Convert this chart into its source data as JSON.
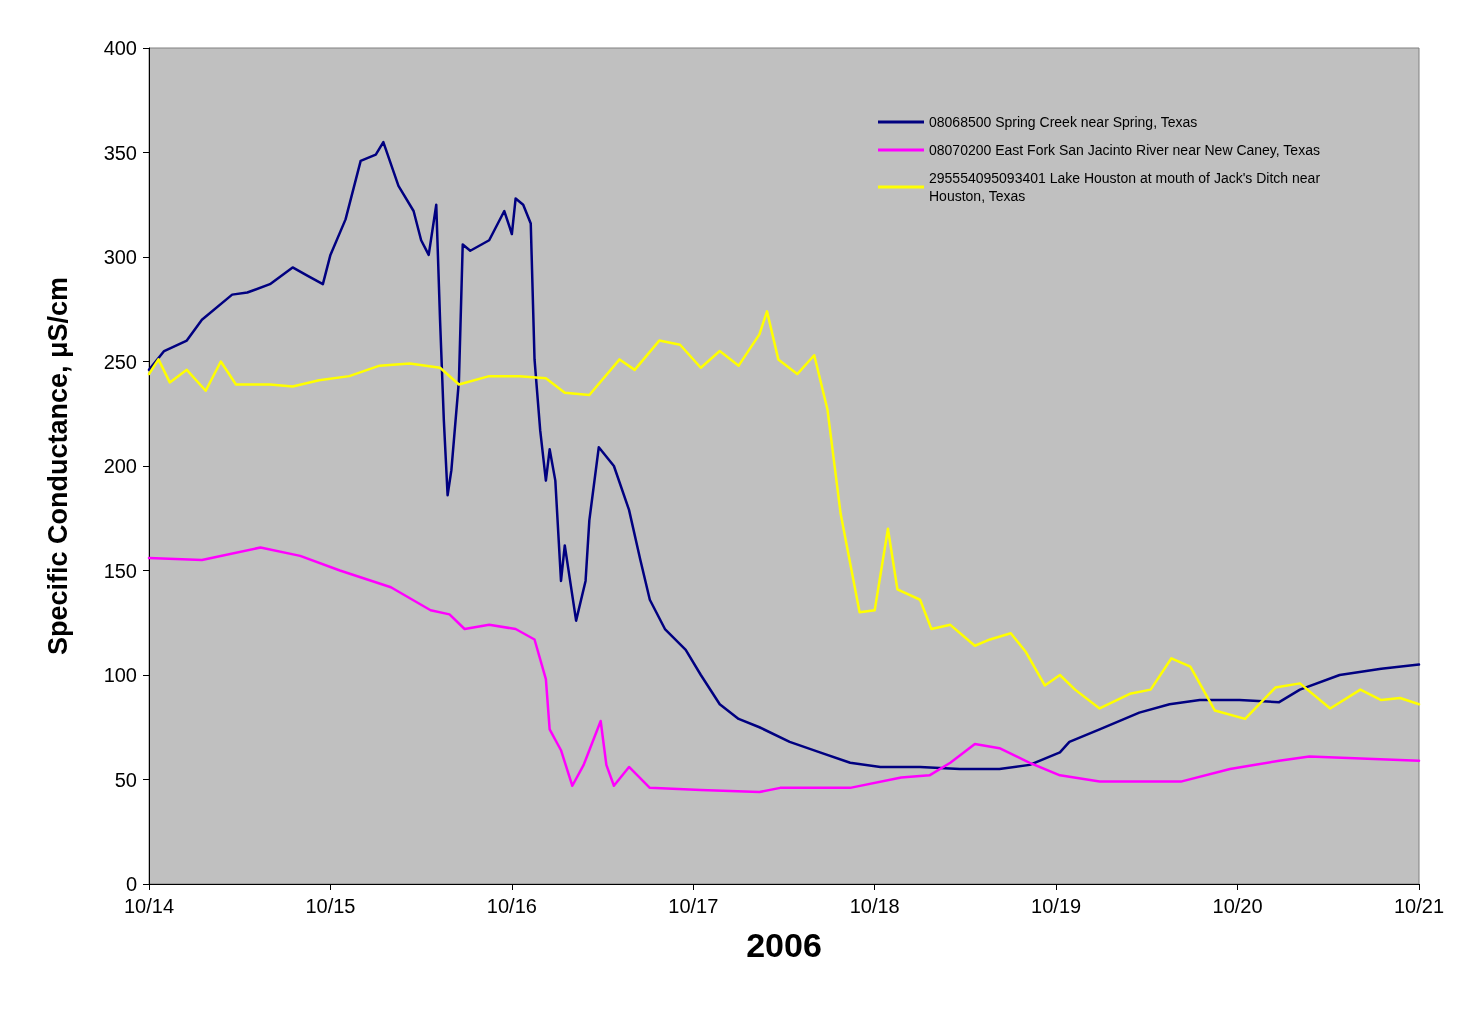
{
  "chart_data": {
    "type": "line",
    "xlabel": "2006",
    "ylabel": "Specific Conductance, μS/cm",
    "xlim": [
      "2006-10-14T00:00",
      "2006-10-21T00:00"
    ],
    "xticks": [
      {
        "value": "2006-10-14T00:00",
        "label": "10/14"
      },
      {
        "value": "2006-10-15T00:00",
        "label": "10/15"
      },
      {
        "value": "2006-10-16T00:00",
        "label": "10/16"
      },
      {
        "value": "2006-10-17T00:00",
        "label": "10/17"
      },
      {
        "value": "2006-10-18T00:00",
        "label": "10/18"
      },
      {
        "value": "2006-10-19T00:00",
        "label": "10/19"
      },
      {
        "value": "2006-10-20T00:00",
        "label": "10/20"
      },
      {
        "value": "2006-10-21T00:00",
        "label": "10/21"
      }
    ],
    "ylim": [
      0,
      400
    ],
    "yticks": [
      0,
      50,
      100,
      150,
      200,
      250,
      300,
      350,
      400
    ],
    "grid": false,
    "legend": "top right",
    "marker": "none",
    "line_style": "solid",
    "series": [
      {
        "name": "08068500 Spring Creek near Spring, Texas",
        "color": "#000080",
        "x": [
          "2006-10-14T00:00",
          "2006-10-14T02:00",
          "2006-10-14T05:00",
          "2006-10-14T07:00",
          "2006-10-14T11:00",
          "2006-10-14T13:00",
          "2006-10-14T16:00",
          "2006-10-14T19:00",
          "2006-10-14T21:00",
          "2006-10-14T23:00",
          "2006-10-15T00:00",
          "2006-10-15T02:00",
          "2006-10-15T04:00",
          "2006-10-15T06:00",
          "2006-10-15T07:00",
          "2006-10-15T09:00",
          "2006-10-15T11:00",
          "2006-10-15T12:00",
          "2006-10-15T13:00",
          "2006-10-15T14:00",
          "2006-10-15T14:30",
          "2006-10-15T15:00",
          "2006-10-15T15:30",
          "2006-10-15T16:00",
          "2006-10-15T17:00",
          "2006-10-15T17:30",
          "2006-10-15T18:30",
          "2006-10-15T21:00",
          "2006-10-15T23:00",
          "2006-10-16T00:00",
          "2006-10-16T00:30",
          "2006-10-16T01:30",
          "2006-10-16T02:30",
          "2006-10-16T03:00",
          "2006-10-16T03:45",
          "2006-10-16T04:30",
          "2006-10-16T05:00",
          "2006-10-16T05:45",
          "2006-10-16T06:30",
          "2006-10-16T07:00",
          "2006-10-16T08:30",
          "2006-10-16T09:45",
          "2006-10-16T10:15",
          "2006-10-16T11:30",
          "2006-10-16T13:30",
          "2006-10-16T15:30",
          "2006-10-16T17:00",
          "2006-10-16T18:15",
          "2006-10-16T20:15",
          "2006-10-16T23:00",
          "2006-10-17T01:00",
          "2006-10-17T03:30",
          "2006-10-17T06:00",
          "2006-10-17T08:45",
          "2006-10-17T12:45",
          "2006-10-17T16:45",
          "2006-10-17T20:45",
          "2006-10-18T00:45",
          "2006-10-18T06:00",
          "2006-10-18T11:15",
          "2006-10-18T16:30",
          "2006-10-18T20:30",
          "2006-10-19T00:30",
          "2006-10-19T01:45",
          "2006-10-19T05:45",
          "2006-10-19T11:00",
          "2006-10-19T15:00",
          "2006-10-19T19:00",
          "2006-10-20T00:15",
          "2006-10-20T05:30",
          "2006-10-20T08:15",
          "2006-10-20T13:30",
          "2006-10-20T19:00",
          "2006-10-21T00:00"
        ],
        "values": [
          246,
          255,
          260,
          270,
          282,
          283,
          287,
          295,
          291,
          287,
          301,
          318,
          346,
          349,
          355,
          334,
          322,
          308,
          301,
          325,
          270,
          222,
          186,
          198,
          241,
          306,
          303,
          308,
          322,
          311,
          328,
          325,
          316,
          251,
          217,
          193,
          208,
          193,
          145,
          162,
          126,
          145,
          174,
          209,
          200,
          179,
          155,
          136,
          122,
          112,
          100,
          86,
          79,
          75,
          68,
          63,
          58,
          56,
          56,
          55,
          55,
          57,
          63,
          68,
          74,
          82,
          86,
          88,
          88,
          87,
          93,
          100,
          103,
          105
        ]
      },
      {
        "name": "08070200 East Fork San Jacinto River near New Caney, Texas",
        "color": "#ff00ff",
        "x": [
          "2006-10-14T00:00",
          "2006-10-14T07:00",
          "2006-10-14T14:45",
          "2006-10-14T20:00",
          "2006-10-15T01:15",
          "2006-10-15T08:00",
          "2006-10-15T13:15",
          "2006-10-15T15:45",
          "2006-10-15T17:45",
          "2006-10-15T21:00",
          "2006-10-16T00:30",
          "2006-10-16T03:00",
          "2006-10-16T04:30",
          "2006-10-16T05:00",
          "2006-10-16T06:30",
          "2006-10-16T08:00",
          "2006-10-16T09:30",
          "2006-10-16T11:45",
          "2006-10-16T12:30",
          "2006-10-16T13:30",
          "2006-10-16T15:30",
          "2006-10-16T18:15",
          "2006-10-17T01:00",
          "2006-10-17T08:45",
          "2006-10-17T11:30",
          "2006-10-17T20:45",
          "2006-10-18T03:30",
          "2006-10-18T07:15",
          "2006-10-18T10:00",
          "2006-10-18T13:15",
          "2006-10-18T16:30",
          "2006-10-18T20:30",
          "2006-10-19T00:30",
          "2006-10-19T05:45",
          "2006-10-19T16:30",
          "2006-10-19T23:00",
          "2006-10-20T05:30",
          "2006-10-20T09:30",
          "2006-10-21T00:00"
        ],
        "values": [
          156,
          155,
          161,
          157,
          150,
          142,
          131,
          129,
          122,
          124,
          122,
          117,
          98,
          74,
          64,
          47,
          57,
          78,
          57,
          47,
          56,
          46,
          45,
          44,
          46,
          46,
          51,
          52,
          58,
          67,
          65,
          58,
          52,
          49,
          49,
          55,
          59,
          61,
          59
        ]
      },
      {
        "name": "295554095093401 Lake Houston at mouth of Jack's Ditch near Houston, Texas",
        "color": "#ffff00",
        "x": [
          "2006-10-14T00:00",
          "2006-10-14T01:15",
          "2006-10-14T02:45",
          "2006-10-14T05:00",
          "2006-10-14T07:30",
          "2006-10-14T09:30",
          "2006-10-14T11:30",
          "2006-10-14T16:00",
          "2006-10-14T19:00",
          "2006-10-14T22:30",
          "2006-10-15T02:30",
          "2006-10-15T06:30",
          "2006-10-15T10:30",
          "2006-10-15T14:30",
          "2006-10-15T17:00",
          "2006-10-15T21:00",
          "2006-10-16T01:00",
          "2006-10-16T04:30",
          "2006-10-16T07:00",
          "2006-10-16T10:15",
          "2006-10-16T14:15",
          "2006-10-16T16:15",
          "2006-10-16T19:30",
          "2006-10-16T22:15",
          "2006-10-17T01:00",
          "2006-10-17T03:30",
          "2006-10-17T06:00",
          "2006-10-17T08:45",
          "2006-10-17T09:45",
          "2006-10-17T11:15",
          "2006-10-17T13:45",
          "2006-10-17T16:00",
          "2006-10-17T17:45",
          "2006-10-17T19:30",
          "2006-10-17T22:00",
          "2006-10-18T00:00",
          "2006-10-18T01:45",
          "2006-10-18T03:00",
          "2006-10-18T06:00",
          "2006-10-18T07:30",
          "2006-10-18T10:00",
          "2006-10-18T13:15",
          "2006-10-18T15:15",
          "2006-10-18T18:00",
          "2006-10-18T20:00",
          "2006-10-18T22:30",
          "2006-10-19T00:30",
          "2006-10-19T02:30",
          "2006-10-19T05:45",
          "2006-10-19T09:45",
          "2006-10-19T12:30",
          "2006-10-19T15:15",
          "2006-10-19T17:45",
          "2006-10-19T21:00",
          "2006-10-20T01:00",
          "2006-10-20T05:00",
          "2006-10-20T08:15",
          "2006-10-20T12:15",
          "2006-10-20T16:15",
          "2006-10-20T19:00",
          "2006-10-20T21:30",
          "2006-10-21T00:00"
        ],
        "values": [
          244,
          251,
          240,
          246,
          236,
          250,
          239,
          239,
          238,
          241,
          243,
          248,
          249,
          247,
          239,
          243,
          243,
          242,
          235,
          234,
          251,
          246,
          260,
          258,
          247,
          255,
          248,
          263,
          274,
          251,
          244,
          253,
          227,
          177,
          130,
          131,
          170,
          141,
          136,
          122,
          124,
          114,
          117,
          120,
          111,
          95,
          100,
          93,
          84,
          91,
          93,
          108,
          104,
          83,
          79,
          94,
          96,
          84,
          93,
          88,
          89,
          86
        ]
      }
    ]
  }
}
